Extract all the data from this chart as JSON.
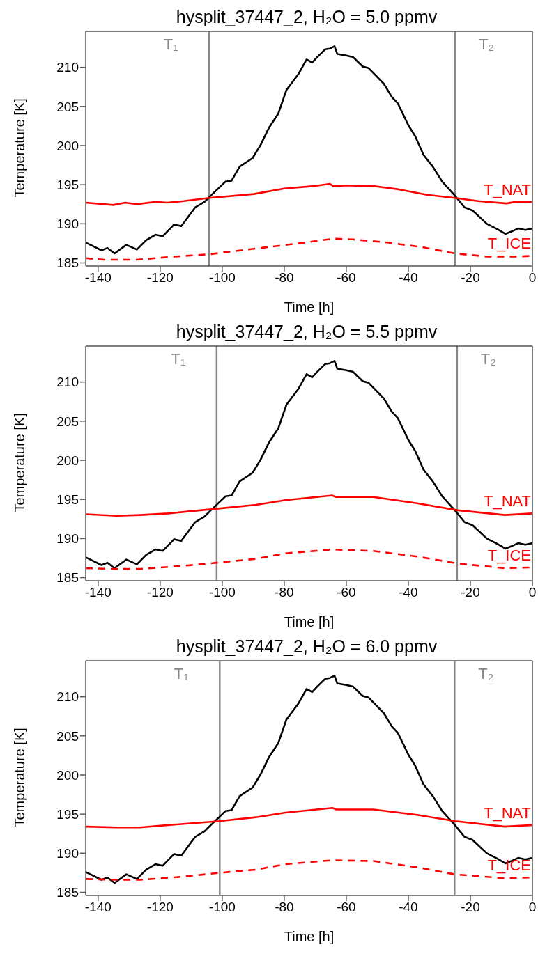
{
  "chart_data": [
    {
      "type": "line",
      "title": "hysplit_37447_2, H₂O = 5.0 ppmv",
      "xlabel": "Time [h]",
      "ylabel": "Temperature [K]",
      "xlim": [
        -144,
        0
      ],
      "ylim": [
        184.6,
        214.6
      ],
      "xticks": [
        -140,
        -120,
        -100,
        -80,
        -60,
        -40,
        -20,
        0
      ],
      "yticks": [
        185,
        190,
        195,
        200,
        205,
        210
      ],
      "ref_lines": [
        {
          "axis": "x",
          "value": -104.2,
          "label": "T₁",
          "color": "#888888"
        },
        {
          "axis": "x",
          "value": -24.9,
          "label": "T₂",
          "color": "#888888"
        }
      ],
      "series": [
        {
          "color": "#000000",
          "x": [
            -144,
            -138.9,
            -137,
            -134.7,
            -130.9,
            -127.5,
            -124.5,
            -121.5,
            -119.2,
            -115.5,
            -113.2,
            -108.7,
            -105.7,
            -104.2,
            -98.9,
            -97,
            -94.4,
            -90.2,
            -87.6,
            -84.9,
            -81.9,
            -79.3,
            -75.5,
            -72.8,
            -71,
            -69.4,
            -66.8,
            -65.3,
            -63.8,
            -62.9,
            -60,
            -57.8,
            -54.7,
            -52.8,
            -50.6,
            -47.9,
            -45.3,
            -43.4,
            -40,
            -37.8,
            -35.1,
            -32.1,
            -29.1,
            -25,
            -21.9,
            -19.3,
            -14.7,
            -11.3,
            -8.7,
            -6.8,
            -4.6,
            -2.3,
            0
          ],
          "values": [
            187.6,
            186.6,
            186.9,
            186.2,
            187.3,
            186.7,
            187.9,
            188.6,
            188.4,
            189.9,
            189.7,
            192.1,
            192.8,
            193.4,
            195.4,
            195.5,
            197.3,
            198.4,
            200.1,
            202.3,
            204.1,
            207.1,
            209.1,
            211,
            210.6,
            211.3,
            212.3,
            212.4,
            212.7,
            211.7,
            211.5,
            211.3,
            210.1,
            209.9,
            209,
            207.9,
            206.2,
            205.4,
            202.6,
            201.2,
            198.8,
            197.3,
            195.4,
            193.6,
            192.1,
            191.7,
            190,
            189.3,
            188.7,
            189,
            189.4,
            189.2,
            189.4
          ]
        },
        {
          "name": "T_NAT",
          "color": "#ff0000",
          "line_style": "solid",
          "x": [
            -144,
            -135.1,
            -131.3,
            -127.5,
            -121.5,
            -117.7,
            -112.4,
            -104.2,
            -89.8,
            -80,
            -71,
            -65.3,
            -64.1,
            -60,
            -50.6,
            -43.1,
            -34,
            -25,
            -17.5,
            -8.4,
            -5.4,
            0
          ],
          "values": [
            192.7,
            192.4,
            192.7,
            192.5,
            192.8,
            192.7,
            192.9,
            193.3,
            193.8,
            194.5,
            194.8,
            195.1,
            194.8,
            194.9,
            194.8,
            194.4,
            193.7,
            193.3,
            192.9,
            192.6,
            192.8,
            192.8
          ]
        },
        {
          "name": "T_ICE",
          "color": "#ff0000",
          "line_style": "dashed",
          "x": [
            -144,
            -138.1,
            -127.5,
            -115.5,
            -104.2,
            -89.8,
            -73.2,
            -64.1,
            -58,
            -46.7,
            -35.4,
            -25,
            -14.4,
            -5.4,
            0
          ],
          "values": [
            185.6,
            185.4,
            185.4,
            185.8,
            186.1,
            186.8,
            187.6,
            188.1,
            188,
            187.6,
            187,
            186.2,
            185.8,
            185.8,
            185.9
          ]
        }
      ]
    },
    {
      "type": "line",
      "title": "hysplit_37447_2, H₂O = 5.5 ppmv",
      "xlabel": "Time [h]",
      "ylabel": "Temperature [K]",
      "xlim": [
        -144,
        0
      ],
      "ylim": [
        184.6,
        214.6
      ],
      "xticks": [
        -140,
        -120,
        -100,
        -80,
        -60,
        -40,
        -20,
        0
      ],
      "yticks": [
        185,
        190,
        195,
        200,
        205,
        210
      ],
      "ref_lines": [
        {
          "axis": "x",
          "value": -101.8,
          "label": "T₁",
          "color": "#888888"
        },
        {
          "axis": "x",
          "value": -24.3,
          "label": "T₂",
          "color": "#888888"
        }
      ],
      "series": [
        {
          "color": "#000000",
          "x": [
            -144,
            -138.9,
            -137,
            -134.7,
            -130.9,
            -127.5,
            -124.5,
            -121.5,
            -119.2,
            -115.5,
            -113.2,
            -108.7,
            -105.7,
            -104.2,
            -98.9,
            -97,
            -94.4,
            -90.2,
            -87.6,
            -84.9,
            -81.9,
            -79.3,
            -75.5,
            -72.8,
            -71,
            -69.4,
            -66.8,
            -65.3,
            -63.8,
            -62.9,
            -60,
            -57.8,
            -54.7,
            -52.8,
            -50.6,
            -47.9,
            -45.3,
            -43.4,
            -40,
            -37.8,
            -35.1,
            -32.1,
            -29.1,
            -25,
            -21.9,
            -19.3,
            -14.7,
            -11.3,
            -8.7,
            -6.8,
            -4.6,
            -2.3,
            0
          ],
          "values": [
            187.6,
            186.6,
            186.9,
            186.2,
            187.3,
            186.7,
            187.9,
            188.6,
            188.4,
            189.9,
            189.7,
            192.1,
            192.8,
            193.4,
            195.4,
            195.5,
            197.3,
            198.4,
            200.1,
            202.3,
            204.1,
            207.1,
            209.1,
            211,
            210.6,
            211.3,
            212.3,
            212.4,
            212.7,
            211.7,
            211.5,
            211.3,
            210.1,
            209.9,
            209,
            207.9,
            206.2,
            205.4,
            202.6,
            201.2,
            198.8,
            197.3,
            195.4,
            193.6,
            192.1,
            191.7,
            190,
            189.3,
            188.7,
            189,
            189.4,
            189.2,
            189.4
          ]
        },
        {
          "name": "T_NAT",
          "color": "#ff0000",
          "line_style": "solid",
          "x": [
            -144,
            -134,
            -126.5,
            -117.4,
            -101.8,
            -89.1,
            -79.6,
            -64.5,
            -63.4,
            -51.3,
            -37.2,
            -24,
            -8.9,
            0
          ],
          "values": [
            193.1,
            192.9,
            193,
            193.2,
            193.8,
            194.3,
            194.9,
            195.5,
            195.3,
            195.3,
            194.5,
            193.6,
            193,
            193.2
          ]
        },
        {
          "name": "T_ICE",
          "color": "#ff0000",
          "line_style": "dashed",
          "x": [
            -144,
            -134,
            -126.5,
            -112.6,
            -101.8,
            -89.1,
            -79.6,
            -64.5,
            -51.3,
            -37.2,
            -24,
            -8.9,
            0
          ],
          "values": [
            186.2,
            186.1,
            186.1,
            186.5,
            186.9,
            187.4,
            188.1,
            188.6,
            188.4,
            187.7,
            186.8,
            186.2,
            186.3
          ]
        }
      ]
    },
    {
      "type": "line",
      "title": "hysplit_37447_2, H₂O = 6.0 ppmv",
      "xlabel": "Time [h]",
      "ylabel": "Temperature [K]",
      "xlim": [
        -144,
        0
      ],
      "ylim": [
        184.6,
        214.6
      ],
      "xticks": [
        -140,
        -120,
        -100,
        -80,
        -60,
        -40,
        -20,
        0
      ],
      "yticks": [
        185,
        190,
        195,
        200,
        205,
        210
      ],
      "ref_lines": [
        {
          "axis": "x",
          "value": -100.8,
          "label": "T₁",
          "color": "#888888"
        },
        {
          "axis": "x",
          "value": -25.1,
          "label": "T₂",
          "color": "#888888"
        }
      ],
      "series": [
        {
          "color": "#000000",
          "x": [
            -144,
            -138.9,
            -137,
            -134.7,
            -130.9,
            -127.5,
            -124.5,
            -121.5,
            -119.2,
            -115.5,
            -113.2,
            -108.7,
            -105.7,
            -104.2,
            -98.9,
            -97,
            -94.4,
            -90.2,
            -87.6,
            -84.9,
            -81.9,
            -79.3,
            -75.5,
            -72.8,
            -71,
            -69.4,
            -66.8,
            -65.3,
            -63.8,
            -62.9,
            -60,
            -57.8,
            -54.7,
            -52.8,
            -50.6,
            -47.9,
            -45.3,
            -43.4,
            -40,
            -37.8,
            -35.1,
            -32.1,
            -29.1,
            -25,
            -21.9,
            -19.3,
            -14.7,
            -11.3,
            -8.7,
            -6.8,
            -4.6,
            -2.3,
            0
          ],
          "values": [
            187.6,
            186.6,
            186.9,
            186.2,
            187.3,
            186.7,
            187.9,
            188.6,
            188.4,
            189.9,
            189.7,
            192.1,
            192.8,
            193.4,
            195.4,
            195.5,
            197.3,
            198.4,
            200.1,
            202.3,
            204.1,
            207.1,
            209.1,
            211,
            210.6,
            211.3,
            212.3,
            212.4,
            212.7,
            211.7,
            211.5,
            211.3,
            210.1,
            209.9,
            209,
            207.9,
            206.2,
            205.4,
            202.6,
            201.2,
            198.8,
            197.3,
            195.4,
            193.6,
            192.1,
            191.7,
            190,
            189.3,
            188.7,
            189,
            189.4,
            189.2,
            189.4
          ]
        },
        {
          "name": "T_NAT",
          "color": "#ff0000",
          "line_style": "solid",
          "x": [
            -144,
            -134,
            -126.5,
            -117.4,
            -100.9,
            -89.1,
            -79.6,
            -64.5,
            -63.4,
            -51.3,
            -37.2,
            -24.9,
            -8.9,
            0
          ],
          "values": [
            193.4,
            193.3,
            193.3,
            193.6,
            194.1,
            194.6,
            195.2,
            195.8,
            195.6,
            195.6,
            194.9,
            194.1,
            193.4,
            193.6
          ]
        },
        {
          "name": "T_ICE",
          "color": "#ff0000",
          "line_style": "dashed",
          "x": [
            -144,
            -134,
            -126.5,
            -112.6,
            -100.9,
            -89.1,
            -79.6,
            -64.5,
            -51.3,
            -37.2,
            -24.9,
            -8.9,
            0
          ],
          "values": [
            186.7,
            186.6,
            186.6,
            187,
            187.5,
            187.9,
            188.6,
            189.1,
            189,
            188.2,
            187.3,
            186.8,
            186.9
          ]
        }
      ]
    }
  ]
}
